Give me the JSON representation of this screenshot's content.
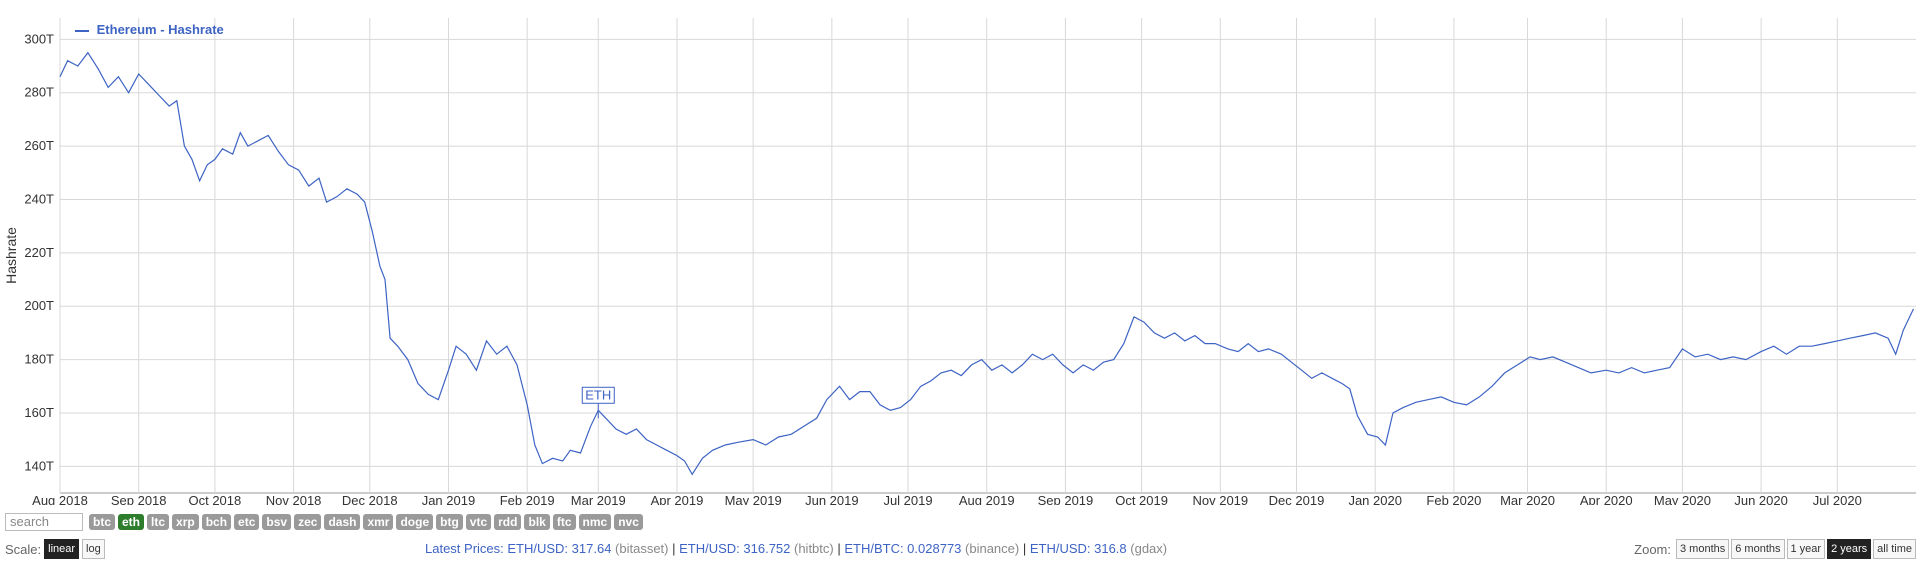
{
  "chart_data": {
    "type": "line",
    "title": "",
    "ylabel": "Hashrate",
    "xlabel": "",
    "ylim": [
      130,
      308
    ],
    "y_ticks": [
      140,
      160,
      180,
      200,
      220,
      240,
      260,
      280,
      300
    ],
    "y_tick_labels": [
      "140T",
      "160T",
      "180T",
      "200T",
      "220T",
      "240T",
      "260T",
      "280T",
      "300T"
    ],
    "x_range": [
      "2018-08-01",
      "2020-08-01"
    ],
    "x_ticks": [
      "2018-08-01",
      "2018-09-01",
      "2018-10-01",
      "2018-11-01",
      "2018-12-01",
      "2019-01-01",
      "2019-02-01",
      "2019-03-01",
      "2019-04-01",
      "2019-05-01",
      "2019-06-01",
      "2019-07-01",
      "2019-08-01",
      "2019-09-01",
      "2019-10-01",
      "2019-11-01",
      "2019-12-01",
      "2020-01-01",
      "2020-02-01",
      "2020-03-01",
      "2020-04-01",
      "2020-05-01",
      "2020-06-01",
      "2020-07-01"
    ],
    "x_tick_labels": [
      "Aug 2018",
      "Sep 2018",
      "Oct 2018",
      "Nov 2018",
      "Dec 2018",
      "Jan 2019",
      "Feb 2019",
      "Mar 2019",
      "Apr 2019",
      "May 2019",
      "Jun 2019",
      "Jul 2019",
      "Aug 2019",
      "Sep 2019",
      "Oct 2019",
      "Nov 2019",
      "Dec 2019",
      "Jan 2020",
      "Feb 2020",
      "Mar 2020",
      "Apr 2020",
      "May 2020",
      "Jun 2020",
      "Jul 2020"
    ],
    "grid": true,
    "legend": "top-left",
    "series": [
      {
        "name": "Ethereum - Hashrate",
        "color": "#3d63c4",
        "points": [
          [
            "2018-08-01",
            286
          ],
          [
            "2018-08-04",
            292
          ],
          [
            "2018-08-08",
            290
          ],
          [
            "2018-08-12",
            295
          ],
          [
            "2018-08-16",
            289
          ],
          [
            "2018-08-20",
            282
          ],
          [
            "2018-08-24",
            286
          ],
          [
            "2018-08-28",
            280
          ],
          [
            "2018-09-01",
            287
          ],
          [
            "2018-09-05",
            283
          ],
          [
            "2018-09-09",
            279
          ],
          [
            "2018-09-13",
            275
          ],
          [
            "2018-09-16",
            277
          ],
          [
            "2018-09-19",
            260
          ],
          [
            "2018-09-22",
            255
          ],
          [
            "2018-09-25",
            247
          ],
          [
            "2018-09-28",
            253
          ],
          [
            "2018-10-01",
            255
          ],
          [
            "2018-10-04",
            259
          ],
          [
            "2018-10-08",
            257
          ],
          [
            "2018-10-11",
            265
          ],
          [
            "2018-10-14",
            260
          ],
          [
            "2018-10-18",
            262
          ],
          [
            "2018-10-22",
            264
          ],
          [
            "2018-10-26",
            258
          ],
          [
            "2018-10-30",
            253
          ],
          [
            "2018-11-03",
            251
          ],
          [
            "2018-11-07",
            245
          ],
          [
            "2018-11-11",
            248
          ],
          [
            "2018-11-14",
            239
          ],
          [
            "2018-11-18",
            241
          ],
          [
            "2018-11-22",
            244
          ],
          [
            "2018-11-26",
            242
          ],
          [
            "2018-11-29",
            239
          ],
          [
            "2018-12-02",
            228
          ],
          [
            "2018-12-05",
            215
          ],
          [
            "2018-12-07",
            210
          ],
          [
            "2018-12-09",
            188
          ],
          [
            "2018-12-12",
            185
          ],
          [
            "2018-12-16",
            180
          ],
          [
            "2018-12-20",
            171
          ],
          [
            "2018-12-24",
            167
          ],
          [
            "2018-12-28",
            165
          ],
          [
            "2019-01-01",
            176
          ],
          [
            "2019-01-04",
            185
          ],
          [
            "2019-01-08",
            182
          ],
          [
            "2019-01-12",
            176
          ],
          [
            "2019-01-16",
            187
          ],
          [
            "2019-01-20",
            182
          ],
          [
            "2019-01-24",
            185
          ],
          [
            "2019-01-28",
            178
          ],
          [
            "2019-02-01",
            163
          ],
          [
            "2019-02-04",
            148
          ],
          [
            "2019-02-07",
            141
          ],
          [
            "2019-02-11",
            143
          ],
          [
            "2019-02-15",
            142
          ],
          [
            "2019-02-18",
            146
          ],
          [
            "2019-02-22",
            145
          ],
          [
            "2019-02-26",
            155
          ],
          [
            "2019-03-01",
            161
          ],
          [
            "2019-03-04",
            158
          ],
          [
            "2019-03-08",
            154
          ],
          [
            "2019-03-12",
            152
          ],
          [
            "2019-03-16",
            154
          ],
          [
            "2019-03-20",
            150
          ],
          [
            "2019-03-24",
            148
          ],
          [
            "2019-03-28",
            146
          ],
          [
            "2019-04-01",
            144
          ],
          [
            "2019-04-04",
            142
          ],
          [
            "2019-04-07",
            137
          ],
          [
            "2019-04-11",
            143
          ],
          [
            "2019-04-15",
            146
          ],
          [
            "2019-04-20",
            148
          ],
          [
            "2019-04-25",
            149
          ],
          [
            "2019-05-01",
            150
          ],
          [
            "2019-05-06",
            148
          ],
          [
            "2019-05-11",
            151
          ],
          [
            "2019-05-16",
            152
          ],
          [
            "2019-05-21",
            155
          ],
          [
            "2019-05-26",
            158
          ],
          [
            "2019-05-30",
            165
          ],
          [
            "2019-06-04",
            170
          ],
          [
            "2019-06-08",
            165
          ],
          [
            "2019-06-12",
            168
          ],
          [
            "2019-06-16",
            168
          ],
          [
            "2019-06-20",
            163
          ],
          [
            "2019-06-24",
            161
          ],
          [
            "2019-06-28",
            162
          ],
          [
            "2019-07-02",
            165
          ],
          [
            "2019-07-06",
            170
          ],
          [
            "2019-07-10",
            172
          ],
          [
            "2019-07-14",
            175
          ],
          [
            "2019-07-18",
            176
          ],
          [
            "2019-07-22",
            174
          ],
          [
            "2019-07-26",
            178
          ],
          [
            "2019-07-30",
            180
          ],
          [
            "2019-08-03",
            176
          ],
          [
            "2019-08-07",
            178
          ],
          [
            "2019-08-11",
            175
          ],
          [
            "2019-08-15",
            178
          ],
          [
            "2019-08-19",
            182
          ],
          [
            "2019-08-23",
            180
          ],
          [
            "2019-08-27",
            182
          ],
          [
            "2019-08-31",
            178
          ],
          [
            "2019-09-04",
            175
          ],
          [
            "2019-09-08",
            178
          ],
          [
            "2019-09-12",
            176
          ],
          [
            "2019-09-16",
            179
          ],
          [
            "2019-09-20",
            180
          ],
          [
            "2019-09-24",
            186
          ],
          [
            "2019-09-28",
            196
          ],
          [
            "2019-10-02",
            194
          ],
          [
            "2019-10-06",
            190
          ],
          [
            "2019-10-10",
            188
          ],
          [
            "2019-10-14",
            190
          ],
          [
            "2019-10-18",
            187
          ],
          [
            "2019-10-22",
            189
          ],
          [
            "2019-10-26",
            186
          ],
          [
            "2019-10-30",
            186
          ],
          [
            "2019-11-04",
            184
          ],
          [
            "2019-11-08",
            183
          ],
          [
            "2019-11-12",
            186
          ],
          [
            "2019-11-16",
            183
          ],
          [
            "2019-11-20",
            184
          ],
          [
            "2019-11-25",
            182
          ],
          [
            "2019-11-29",
            179
          ],
          [
            "2019-12-03",
            176
          ],
          [
            "2019-12-07",
            173
          ],
          [
            "2019-12-11",
            175
          ],
          [
            "2019-12-15",
            173
          ],
          [
            "2019-12-19",
            171
          ],
          [
            "2019-12-22",
            169
          ],
          [
            "2019-12-25",
            159
          ],
          [
            "2019-12-29",
            152
          ],
          [
            "2020-01-02",
            151
          ],
          [
            "2020-01-05",
            148
          ],
          [
            "2020-01-08",
            160
          ],
          [
            "2020-01-12",
            162
          ],
          [
            "2020-01-17",
            164
          ],
          [
            "2020-01-22",
            165
          ],
          [
            "2020-01-27",
            166
          ],
          [
            "2020-02-01",
            164
          ],
          [
            "2020-02-06",
            163
          ],
          [
            "2020-02-11",
            166
          ],
          [
            "2020-02-16",
            170
          ],
          [
            "2020-02-21",
            175
          ],
          [
            "2020-02-26",
            178
          ],
          [
            "2020-03-02",
            181
          ],
          [
            "2020-03-06",
            180
          ],
          [
            "2020-03-11",
            181
          ],
          [
            "2020-03-16",
            179
          ],
          [
            "2020-03-21",
            177
          ],
          [
            "2020-03-26",
            175
          ],
          [
            "2020-04-01",
            176
          ],
          [
            "2020-04-06",
            175
          ],
          [
            "2020-04-11",
            177
          ],
          [
            "2020-04-16",
            175
          ],
          [
            "2020-04-21",
            176
          ],
          [
            "2020-04-26",
            177
          ],
          [
            "2020-05-01",
            184
          ],
          [
            "2020-05-06",
            181
          ],
          [
            "2020-05-11",
            182
          ],
          [
            "2020-05-16",
            180
          ],
          [
            "2020-05-21",
            181
          ],
          [
            "2020-05-26",
            180
          ],
          [
            "2020-06-01",
            183
          ],
          [
            "2020-06-06",
            185
          ],
          [
            "2020-06-11",
            182
          ],
          [
            "2020-06-16",
            185
          ],
          [
            "2020-06-21",
            185
          ],
          [
            "2020-06-26",
            186
          ],
          [
            "2020-07-01",
            187
          ],
          [
            "2020-07-06",
            188
          ],
          [
            "2020-07-11",
            189
          ],
          [
            "2020-07-16",
            190
          ],
          [
            "2020-07-21",
            188
          ],
          [
            "2020-07-24",
            182
          ],
          [
            "2020-07-27",
            191
          ],
          [
            "2020-07-31",
            199
          ]
        ]
      }
    ],
    "annotations": [
      {
        "label": "ETH",
        "x": "2019-03-01",
        "y": 158
      }
    ]
  },
  "legend_label": "Ethereum - Hashrate",
  "search": {
    "placeholder": "search"
  },
  "coins": [
    {
      "label": "btc",
      "active": false
    },
    {
      "label": "eth",
      "active": true
    },
    {
      "label": "ltc",
      "active": false
    },
    {
      "label": "xrp",
      "active": false
    },
    {
      "label": "bch",
      "active": false
    },
    {
      "label": "etc",
      "active": false
    },
    {
      "label": "bsv",
      "active": false
    },
    {
      "label": "zec",
      "active": false
    },
    {
      "label": "dash",
      "active": false
    },
    {
      "label": "xmr",
      "active": false
    },
    {
      "label": "doge",
      "active": false
    },
    {
      "label": "btg",
      "active": false
    },
    {
      "label": "vtc",
      "active": false
    },
    {
      "label": "rdd",
      "active": false
    },
    {
      "label": "blk",
      "active": false
    },
    {
      "label": "ftc",
      "active": false
    },
    {
      "label": "nmc",
      "active": false
    },
    {
      "label": "nvc",
      "active": false
    }
  ],
  "scale": {
    "label": "Scale:",
    "linear": "linear",
    "log": "log",
    "selected": "linear"
  },
  "prices": {
    "label": "Latest Prices:",
    "items": [
      {
        "pair": "ETH/USD:",
        "value": "317.64",
        "source": "(bitasset)"
      },
      {
        "pair": "ETH/USD:",
        "value": "316.752",
        "source": "(hitbtc)"
      },
      {
        "pair": "ETH/BTC:",
        "value": "0.028773",
        "source": "(binance)"
      },
      {
        "pair": "ETH/USD:",
        "value": "316.8",
        "source": "(gdax)"
      }
    ]
  },
  "zoom": {
    "label": "Zoom:",
    "options": [
      "3 months",
      "6 months",
      "1 year",
      "2 years",
      "all time"
    ],
    "selected": "2 years"
  }
}
